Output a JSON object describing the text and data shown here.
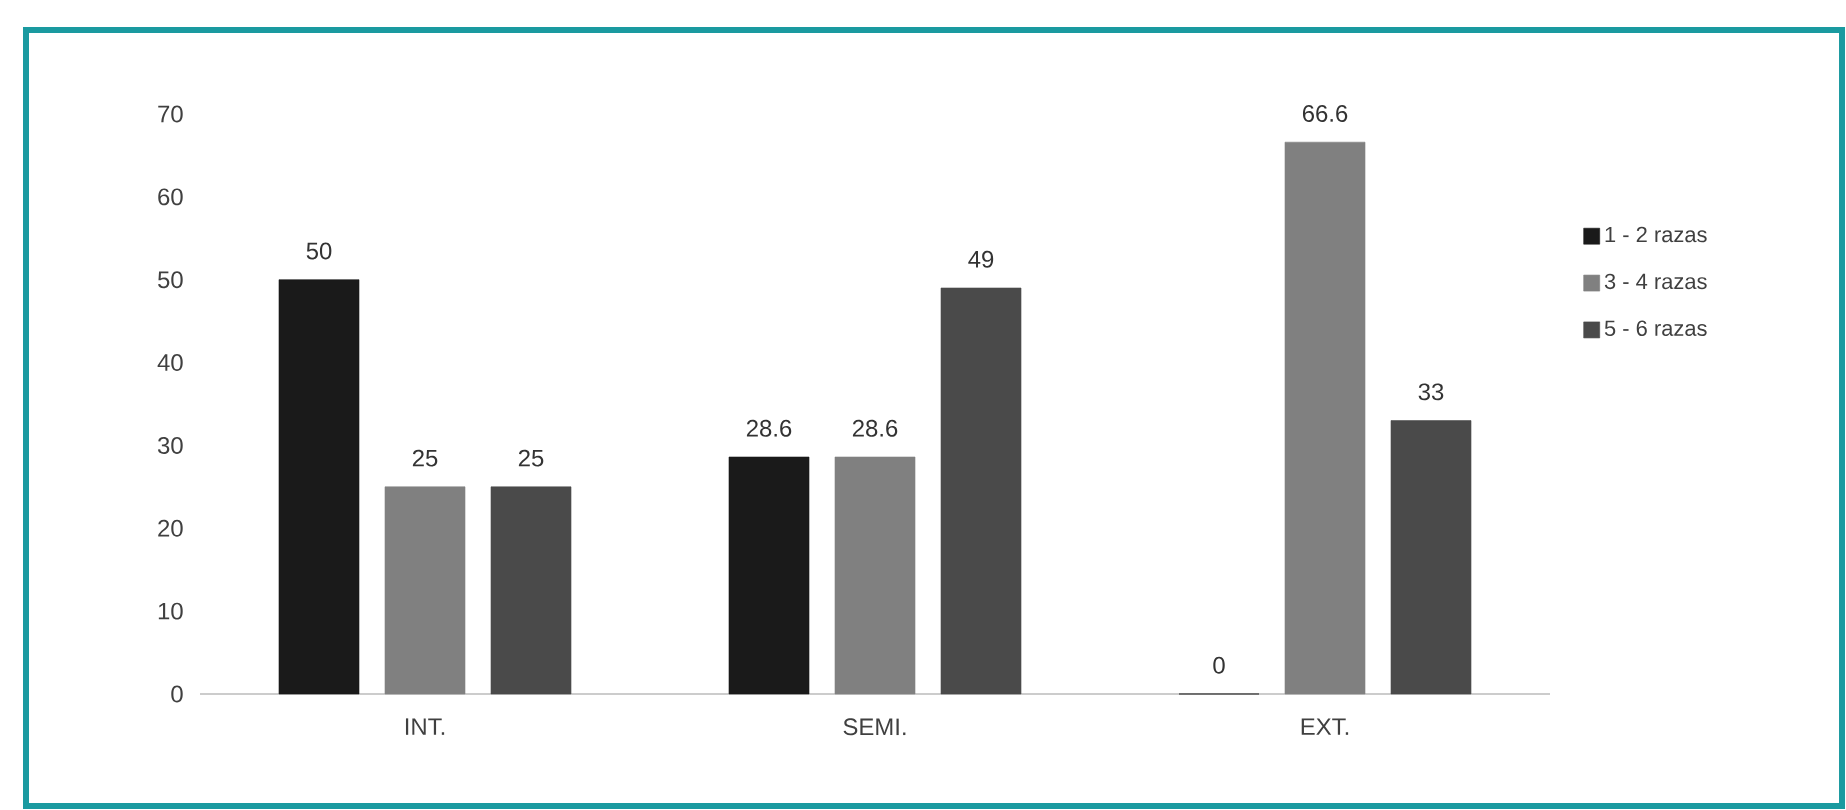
{
  "chart_data": {
    "type": "bar",
    "categories": [
      "INT.",
      "SEMI.",
      "EXT."
    ],
    "series": [
      {
        "name": "1 - 2 razas",
        "color": "#1a1a1a",
        "values": [
          50,
          28.6,
          0
        ]
      },
      {
        "name": "3 - 4 razas",
        "color": "#808080",
        "values": [
          25,
          28.6,
          66.6
        ]
      },
      {
        "name": "5 - 6 razas",
        "color": "#4a4a4a",
        "values": [
          25,
          49,
          33
        ]
      }
    ],
    "ylim": [
      0,
      70
    ],
    "yticks": [
      0,
      10,
      20,
      30,
      40,
      50,
      60,
      70
    ],
    "data_labels": true,
    "legend": "right",
    "grid": false
  }
}
